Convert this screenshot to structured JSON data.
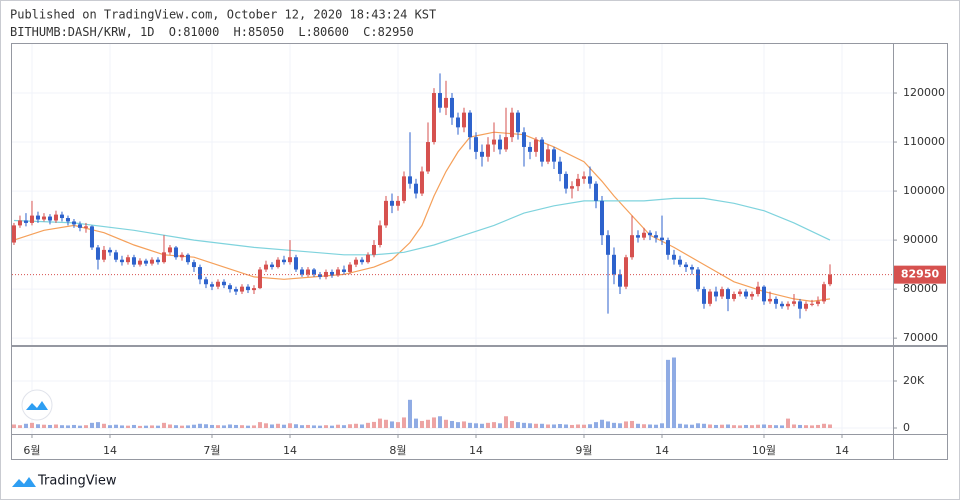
{
  "chart_data": {
    "type": "candlestick",
    "title": "Published on TradingView.com, October 12, 2020 18:43:24 KST",
    "symbol": "BITHUMB:DASH/KRW, 1D",
    "ohlc_labels": [
      "O:",
      "H:",
      "L:",
      "C:"
    ],
    "brand": "TradingView",
    "up_color": "#d6514f",
    "down_color": "#2d62cc",
    "last_price_color": "#d6514f",
    "grid": true,
    "xlim": [
      -0.33,
      146.5
    ],
    "xticks": [
      {
        "value": 3,
        "label": "6월"
      },
      {
        "value": 16,
        "label": "14"
      },
      {
        "value": 33,
        "label": "7월"
      },
      {
        "value": 46,
        "label": "14"
      },
      {
        "value": 64,
        "label": "8월"
      },
      {
        "value": 77,
        "label": "14"
      },
      {
        "value": 95,
        "label": "9월"
      },
      {
        "value": 108,
        "label": "14"
      },
      {
        "value": 125,
        "label": "10월"
      },
      {
        "value": 138,
        "label": "14"
      }
    ],
    "ylim": [
      68600,
      130000
    ],
    "yticks": [
      70000,
      80000,
      90000,
      100000,
      110000,
      120000
    ],
    "candles": {
      "open": [
        89500,
        93000,
        94000,
        93500,
        95000,
        94200,
        94800,
        94000,
        95200,
        94500,
        93800,
        93200,
        92500,
        92800,
        88500,
        86000,
        88000,
        87500,
        86000,
        85500,
        86500,
        85000,
        85800,
        85200,
        86000,
        85500,
        87500,
        88500,
        86500,
        87000,
        85500,
        84500,
        82000,
        81000,
        80500,
        81500,
        80800,
        80000,
        79500,
        80500,
        79800,
        80200,
        84000,
        85000,
        84500,
        86000,
        85500,
        86500,
        84000,
        83000,
        84000,
        83000,
        82500,
        83500,
        82800,
        84000,
        83500,
        85000,
        86000,
        85500,
        87000,
        89000,
        93000,
        98000,
        97000,
        98000,
        103000,
        101500,
        99500,
        104000,
        110000,
        120000,
        117000,
        119000,
        115000,
        113000,
        116000,
        111000,
        108000,
        107000,
        109500,
        110500,
        108500,
        111000,
        116000,
        112000,
        109000,
        108000,
        110500,
        106000,
        108500,
        106000,
        103500,
        100500,
        101000,
        102500,
        103000,
        101500,
        98000,
        91000,
        87000,
        83000,
        80500,
        86500,
        91000,
        90500,
        91500,
        91000,
        90500,
        90000,
        87000,
        86000,
        85000,
        84500,
        84000,
        80000,
        77000,
        79500,
        78500,
        80000,
        78000,
        79000,
        79500,
        78500,
        79000,
        80500,
        77500,
        78000,
        77000,
        76500,
        77000,
        77500,
        76000,
        77000,
        77000,
        77500,
        81000
      ],
      "high": [
        93500,
        95000,
        95500,
        98000,
        95800,
        95500,
        95300,
        96000,
        95800,
        95000,
        94300,
        93800,
        93500,
        93000,
        89000,
        88800,
        88500,
        88000,
        86800,
        87000,
        87000,
        86300,
        86200,
        86500,
        86500,
        91000,
        89000,
        88800,
        87500,
        87300,
        86000,
        85000,
        82500,
        81500,
        82000,
        82000,
        81200,
        80500,
        81000,
        81000,
        80800,
        84500,
        85800,
        85500,
        86500,
        86800,
        90000,
        87000,
        84500,
        84500,
        84300,
        83500,
        84000,
        84000,
        84500,
        84800,
        85500,
        86500,
        86500,
        87500,
        90000,
        94000,
        99000,
        99500,
        99000,
        104000,
        112000,
        102500,
        105000,
        114000,
        121000,
        124000,
        122500,
        120000,
        116000,
        117000,
        116500,
        112000,
        109500,
        111000,
        114000,
        111500,
        117000,
        117000,
        116500,
        113000,
        110000,
        111000,
        111000,
        109500,
        109000,
        107000,
        104000,
        102000,
        103500,
        104000,
        105000,
        102000,
        99000,
        92000,
        88500,
        84000,
        87000,
        95000,
        92000,
        92500,
        92000,
        91800,
        95000,
        90500,
        88000,
        86800,
        85500,
        85000,
        84500,
        80500,
        80000,
        80500,
        80500,
        80300,
        79500,
        80000,
        80000,
        79500,
        81500,
        80800,
        79500,
        78500,
        77500,
        77500,
        79000,
        78000,
        77500,
        77800,
        78500,
        81500,
        85050
      ],
      "low": [
        89000,
        92500,
        92800,
        93000,
        93500,
        93800,
        93200,
        93500,
        93800,
        93000,
        92500,
        91800,
        91500,
        88000,
        84000,
        85500,
        86800,
        85500,
        84800,
        85000,
        84500,
        84600,
        84700,
        84800,
        85000,
        85200,
        87000,
        86000,
        85800,
        85000,
        83500,
        81000,
        80200,
        79800,
        80000,
        80200,
        79300,
        78800,
        79000,
        79200,
        79000,
        80000,
        83500,
        84000,
        84200,
        85000,
        85000,
        83500,
        82500,
        82500,
        82500,
        82000,
        82000,
        82300,
        82500,
        83000,
        83000,
        84500,
        85000,
        85200,
        86500,
        88500,
        92500,
        95500,
        96000,
        97500,
        100500,
        98500,
        99000,
        103500,
        109500,
        116000,
        115500,
        113500,
        111500,
        112000,
        108500,
        106500,
        105000,
        106000,
        108000,
        107500,
        108000,
        110000,
        110500,
        105000,
        106500,
        107000,
        105000,
        105500,
        104500,
        102000,
        99500,
        98500,
        100000,
        101500,
        100500,
        96500,
        89000,
        75000,
        81000,
        79000,
        80000,
        86000,
        89500,
        90000,
        90000,
        89500,
        89000,
        86000,
        85000,
        84500,
        83500,
        83000,
        79500,
        76000,
        76500,
        77500,
        78000,
        75500,
        77500,
        78500,
        78000,
        77800,
        78500,
        76800,
        77000,
        76000,
        76000,
        75800,
        76500,
        74000,
        75500,
        76500,
        76500,
        77000,
        80600
      ],
      "close": [
        93000,
        94000,
        93500,
        95000,
        94200,
        94800,
        94000,
        95200,
        94500,
        93800,
        93200,
        92500,
        92800,
        88500,
        86000,
        88000,
        87500,
        86000,
        85500,
        86500,
        85000,
        85800,
        85200,
        86000,
        85500,
        87500,
        88500,
        86500,
        87000,
        85500,
        84500,
        82000,
        81000,
        80500,
        81500,
        80800,
        80000,
        79500,
        80500,
        79800,
        80200,
        84000,
        85000,
        84500,
        86000,
        85500,
        86500,
        84000,
        83000,
        84000,
        83000,
        82500,
        83500,
        82800,
        84000,
        83500,
        85000,
        86000,
        85500,
        87000,
        89000,
        93000,
        98000,
        97000,
        98000,
        103000,
        101500,
        99500,
        104000,
        110000,
        120000,
        117000,
        119000,
        115000,
        113000,
        116000,
        111000,
        108000,
        107000,
        109500,
        110500,
        108500,
        111000,
        116000,
        112000,
        109000,
        108000,
        110500,
        106000,
        108500,
        106000,
        103500,
        100500,
        101000,
        102500,
        103000,
        101500,
        98000,
        91000,
        87000,
        83000,
        80500,
        86500,
        91000,
        90500,
        91500,
        91000,
        90500,
        90000,
        87000,
        86000,
        85000,
        84500,
        84000,
        80000,
        77000,
        79500,
        78500,
        80000,
        78000,
        79000,
        79500,
        78500,
        79000,
        80500,
        77500,
        78000,
        77000,
        76500,
        77000,
        77500,
        76000,
        77000,
        77000,
        77500,
        81000,
        82950
      ]
    },
    "moving_averages": [
      {
        "color": "#f5a05a",
        "x": [
          0,
          5,
          10,
          15,
          20,
          25,
          30,
          35,
          40,
          45,
          50,
          55,
          60,
          63,
          66,
          68,
          70,
          72,
          74,
          76,
          80,
          85,
          90,
          95,
          98,
          100,
          103,
          106,
          110,
          115,
          120,
          125,
          130,
          133,
          136
        ],
        "values": [
          90000,
          92000,
          93000,
          91500,
          89000,
          87000,
          86500,
          84500,
          82500,
          82000,
          82500,
          83000,
          84500,
          86000,
          89500,
          93000,
          99000,
          104000,
          108000,
          111000,
          112000,
          111500,
          109000,
          106000,
          102000,
          99000,
          95000,
          91000,
          88500,
          85000,
          81500,
          79500,
          78000,
          77500,
          78000
        ]
      },
      {
        "color": "#7fd3dd",
        "x": [
          0,
          10,
          20,
          30,
          40,
          50,
          55,
          60,
          65,
          70,
          75,
          80,
          85,
          90,
          95,
          100,
          105,
          110,
          115,
          120,
          125,
          130,
          136
        ],
        "values": [
          94000,
          93500,
          92000,
          90000,
          88500,
          87500,
          87000,
          87000,
          87500,
          89000,
          91000,
          93000,
          95500,
          97000,
          98000,
          98000,
          98000,
          98500,
          98500,
          97500,
          96000,
          93500,
          90000
        ]
      }
    ],
    "volume": {
      "ylim": [
        -2550,
        34470
      ],
      "yticks": [
        0,
        {
          "value": 20000,
          "label": "20K"
        }
      ],
      "up_color": "#eda3a3",
      "down_color": "#8fabe4",
      "values": [
        1500,
        1200,
        1800,
        2200,
        1600,
        1400,
        1300,
        1500,
        1200,
        1100,
        1300,
        1000,
        1200,
        2200,
        2500,
        1800,
        1200,
        1400,
        1100,
        1000,
        1300,
        900,
        1000,
        1100,
        1000,
        2200,
        1500,
        1200,
        1000,
        1100,
        1400,
        1800,
        1600,
        1300,
        1200,
        1100,
        1500,
        1300,
        1200,
        1000,
        1100,
        2500,
        2000,
        1500,
        1800,
        1400,
        2000,
        1600,
        1200,
        1300,
        1100,
        1000,
        1200,
        1000,
        1400,
        1200,
        1600,
        1800,
        1500,
        2200,
        2600,
        4000,
        3500,
        2800,
        2500,
        4500,
        12000,
        4000,
        3000,
        3500,
        4500,
        5000,
        3500,
        3000,
        2500,
        2800,
        2200,
        2000,
        1800,
        2200,
        2500,
        2000,
        5000,
        3000,
        2500,
        2200,
        2000,
        1800,
        1800,
        1500,
        1500,
        1700,
        1500,
        1300,
        1500,
        1400,
        1600,
        2500,
        3500,
        2800,
        2200,
        2000,
        2800,
        3000,
        1800,
        1600,
        1500,
        1400,
        2000,
        29000,
        30000,
        1800,
        1500,
        1400,
        2000,
        1800,
        1500,
        1300,
        1400,
        1500,
        1200,
        1100,
        1300,
        1200,
        1400,
        1500,
        1300,
        1200,
        1100,
        4000,
        1500,
        1300,
        1200,
        1100,
        1300,
        1800,
        1500
      ]
    }
  }
}
